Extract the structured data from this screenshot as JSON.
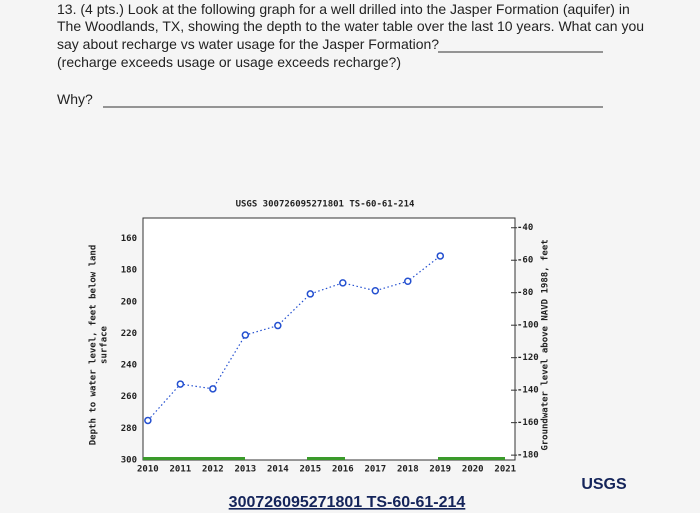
{
  "question": {
    "lines": [
      "13. (4 pts.) Look at the following graph for a well drilled into the Jasper Formation (aquifer) in",
      "The Woodlands, TX, showing the depth to the water table over the last 10 years. What can you",
      "say about recharge vs water usage for the Jasper Formation?",
      "(recharge exceeds usage or usage exceeds recharge?)"
    ],
    "why": "Why?"
  },
  "chart_data": {
    "type": "line",
    "title": "USGS 300726095271801 TS-60-61-214",
    "ylabel": [
      "Depth to water level, feet below land",
      "surface"
    ],
    "y2label": "Groundwater level above NAVD 1988, feet",
    "x": [
      2010,
      2011,
      2012,
      2013,
      2014,
      2015,
      2016,
      2017,
      2018,
      2019
    ],
    "series": [
      {
        "color": "#2450d0",
        "values": [
          275,
          252,
          255,
          221,
          215,
          195,
          188,
          193,
          187,
          171
        ]
      }
    ],
    "xlim": [
      2009.85,
      2021.3
    ],
    "xticks": [
      2010,
      2011,
      2012,
      2013,
      2014,
      2015,
      2016,
      2017,
      2018,
      2019,
      2020,
      2021
    ],
    "ylim": [
      147,
      300
    ],
    "y_inverted": true,
    "yticks": [
      160,
      180,
      200,
      220,
      240,
      260,
      280,
      300
    ],
    "y2lim": [
      -183,
      -34
    ],
    "y2ticks": [
      -40,
      -60,
      -80,
      -100,
      -120,
      -140,
      -160,
      -180
    ]
  },
  "caption": "300726095271801 TS-60-61-214",
  "logo": "USGS"
}
